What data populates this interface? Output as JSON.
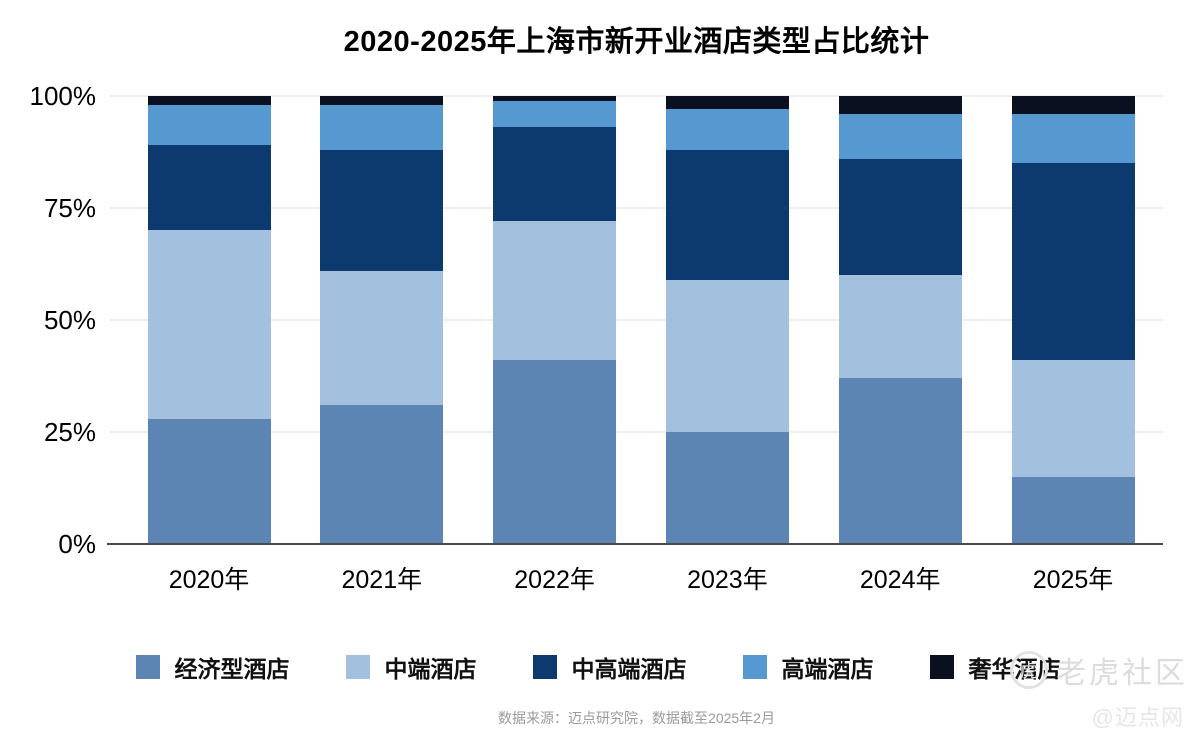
{
  "chart_data": {
    "type": "bar",
    "stacked": true,
    "title": "2020-2025年上海市新开业酒店类型占比统计",
    "categories": [
      "2020年",
      "2021年",
      "2022年",
      "2023年",
      "2024年",
      "2025年"
    ],
    "series": [
      {
        "name": "经济型酒店",
        "color": "#5d85b3",
        "values": [
          28,
          31,
          41,
          25,
          37,
          15
        ]
      },
      {
        "name": "中端酒店",
        "color": "#a3c1de",
        "values": [
          42,
          30,
          31,
          34,
          23,
          26
        ]
      },
      {
        "name": "中高端酒店",
        "color": "#0d3a6e",
        "values": [
          19,
          27,
          21,
          29,
          26,
          44
        ]
      },
      {
        "name": "高端酒店",
        "color": "#5698d0",
        "values": [
          9,
          10,
          6,
          9,
          10,
          11
        ]
      },
      {
        "name": "奢华酒店",
        "color": "#0a101f",
        "values": [
          2,
          2,
          1,
          3,
          4,
          4
        ]
      }
    ],
    "unit": "%",
    "ylim": [
      0,
      100
    ],
    "yticks": [
      0,
      25,
      50,
      75,
      100
    ],
    "ytick_labels": [
      "0%",
      "25%",
      "50%",
      "75%",
      "100%"
    ],
    "grid": true,
    "legend_position": "bottom",
    "axis_color": "#4a4a4a",
    "gridline_color": "#eeeeee"
  },
  "footer": {
    "source": "数据来源：迈点研究院，数据截至2025年2月"
  },
  "watermarks": {
    "tiger_community": "老虎社区",
    "tiger_logo_glyph": "虎",
    "maidian": "@迈点网"
  }
}
